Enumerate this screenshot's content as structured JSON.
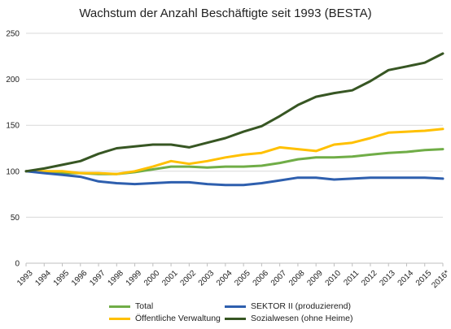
{
  "chart_data": {
    "type": "line",
    "title": "Wachstum der Anzahl Beschäftigte seit 1993 (BESTA)",
    "xlabel": "",
    "ylabel": "",
    "categories": [
      "1993",
      "1994",
      "1995",
      "1996",
      "1997",
      "1998",
      "1999",
      "2000",
      "2001",
      "2002",
      "2003",
      "2004",
      "2005",
      "2006",
      "2007",
      "2008",
      "2009",
      "2010",
      "2011",
      "2012",
      "2013",
      "2014",
      "2015",
      "2016*"
    ],
    "ylim": [
      0,
      250
    ],
    "yticks": [
      "0",
      "50",
      "100",
      "150",
      "200",
      "250"
    ],
    "grid": "horizontal",
    "legend_position": "bottom",
    "series": [
      {
        "name": "Total",
        "color": "#70ad47",
        "values": [
          100,
          99,
          98,
          98,
          97,
          97,
          99,
          102,
          105,
          105,
          104,
          105,
          105,
          106,
          109,
          113,
          115,
          115,
          116,
          118,
          120,
          121,
          123,
          124
        ]
      },
      {
        "name": "Öffentliche Verwaltung",
        "color": "#ffc000",
        "values": [
          100,
          100,
          100,
          98,
          98,
          97,
          100,
          105,
          111,
          108,
          111,
          115,
          118,
          120,
          126,
          124,
          122,
          129,
          131,
          136,
          142,
          143,
          144,
          146
        ]
      },
      {
        "name": "SEKTOR II (produzierend)",
        "color": "#2e5fae",
        "values": [
          100,
          98,
          96,
          94,
          89,
          87,
          86,
          87,
          88,
          88,
          86,
          85,
          85,
          87,
          90,
          93,
          93,
          91,
          92,
          93,
          93,
          93,
          93,
          92
        ]
      },
      {
        "name": "Sozialwesen (ohne Heime)",
        "color": "#375623",
        "values": [
          100,
          103,
          107,
          111,
          119,
          125,
          127,
          129,
          129,
          126,
          131,
          136,
          143,
          149,
          160,
          172,
          181,
          185,
          188,
          198,
          210,
          214,
          218,
          228
        ]
      }
    ]
  },
  "legend": {
    "items": [
      {
        "label": "Total",
        "color": "#70ad47"
      },
      {
        "label": "Öffentliche Verwaltung",
        "color": "#ffc000"
      },
      {
        "label": "SEKTOR II (produzierend)",
        "color": "#2e5fae"
      },
      {
        "label": "Sozialwesen (ohne Heime)",
        "color": "#375623"
      }
    ]
  }
}
